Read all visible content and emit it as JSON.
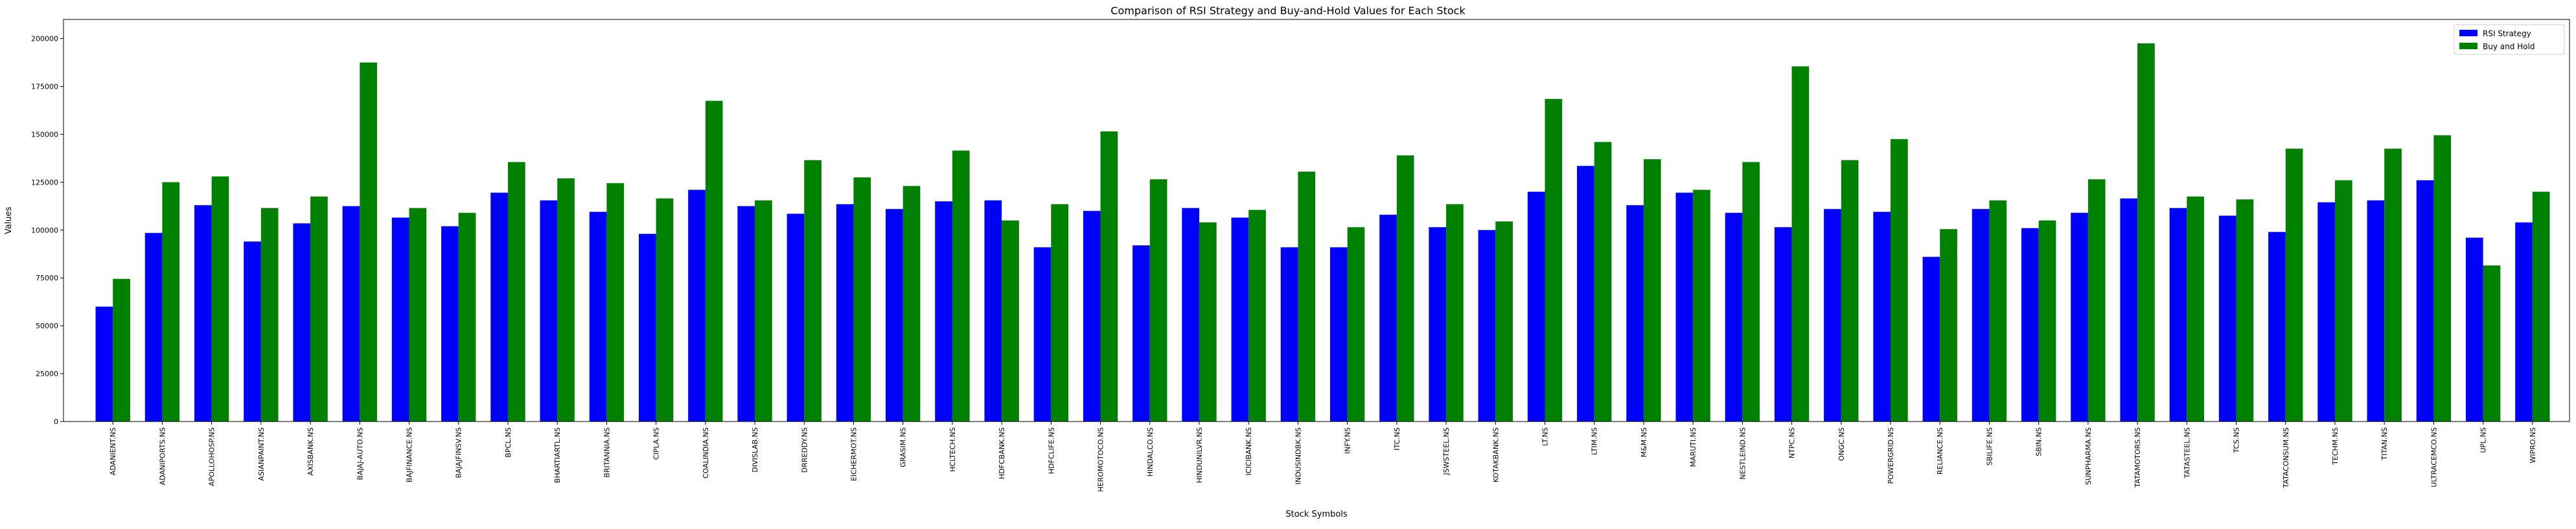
{
  "chart_data": {
    "type": "bar",
    "title": "Comparison of RSI Strategy and Buy-and-Hold Values for Each Stock",
    "xlabel": "Stock Symbols",
    "ylabel": "Values",
    "ylim": [
      0,
      210000
    ],
    "yticks": [
      0,
      25000,
      50000,
      75000,
      100000,
      125000,
      150000,
      175000,
      200000
    ],
    "ytick_labels": [
      "0",
      "25000",
      "50000",
      "75000",
      "100000",
      "125000",
      "150000",
      "175000",
      "200000"
    ],
    "grid": false,
    "legend_position": "top-right",
    "categories": [
      "ADANIENT.NS",
      "ADANIPORTS.NS",
      "APOLLOHOSP.NS",
      "ASIANPAINT.NS",
      "AXISBANK.NS",
      "BAJAJ-AUTO.NS",
      "BAJFINANCE.NS",
      "BAJAJFINSV.NS",
      "BPCL.NS",
      "BHARTIARTL.NS",
      "BRITANNIA.NS",
      "CIPLA.NS",
      "COALINDIA.NS",
      "DIVISLAB.NS",
      "DRREDDY.NS",
      "EICHERMOT.NS",
      "GRASIM.NS",
      "HCLTECH.NS",
      "HDFCBANK.NS",
      "HDFCLIFE.NS",
      "HEROMOTOCO.NS",
      "HINDALCO.NS",
      "HINDUNILVR.NS",
      "ICICIBANK.NS",
      "INDUSINDBK.NS",
      "INFY.NS",
      "ITC.NS",
      "JSWSTEEL.NS",
      "KOTAKBANK.NS",
      "LT.NS",
      "LTIM.NS",
      "M&M.NS",
      "MARUTI.NS",
      "NESTLEIND.NS",
      "NTPC.NS",
      "ONGC.NS",
      "POWERGRID.NS",
      "RELIANCE.NS",
      "SBILIFE.NS",
      "SBIN.NS",
      "SUNPHARMA.NS",
      "TATAMOTORS.NS",
      "TATASTEEL.NS",
      "TCS.NS",
      "TATACONSUM.NS",
      "TECHM.NS",
      "TITAN.NS",
      "ULTRACEMCO.NS",
      "UPL.NS",
      "WIPRO.NS"
    ],
    "series": [
      {
        "name": "RSI Strategy",
        "color": "#0000ff",
        "values": [
          60000,
          98500,
          113000,
          94000,
          103500,
          112500,
          106500,
          102000,
          119500,
          115500,
          109500,
          98000,
          121000,
          112500,
          108500,
          113500,
          111000,
          115000,
          115500,
          91000,
          110000,
          92000,
          111500,
          106500,
          91000,
          91000,
          108000,
          101500,
          100000,
          120000,
          133500,
          113000,
          119500,
          109000,
          101500,
          111000,
          109500,
          86000,
          111000,
          101000,
          109000,
          116500,
          111500,
          107500,
          99000,
          114500,
          115500,
          126000,
          96000,
          104000
        ]
      },
      {
        "name": "Buy and Hold",
        "color": "#008000",
        "values": [
          74500,
          125000,
          128000,
          111500,
          117500,
          187500,
          111500,
          109000,
          135500,
          127000,
          124500,
          116500,
          167500,
          115500,
          136500,
          127500,
          123000,
          141500,
          105000,
          113500,
          151500,
          126500,
          104000,
          110500,
          130500,
          101500,
          139000,
          113500,
          104500,
          168500,
          146000,
          137000,
          121000,
          135500,
          185500,
          136500,
          147500,
          100500,
          115500,
          105000,
          126500,
          197500,
          117500,
          116000,
          142500,
          126000,
          142500,
          149500,
          81500,
          120000
        ]
      }
    ]
  }
}
